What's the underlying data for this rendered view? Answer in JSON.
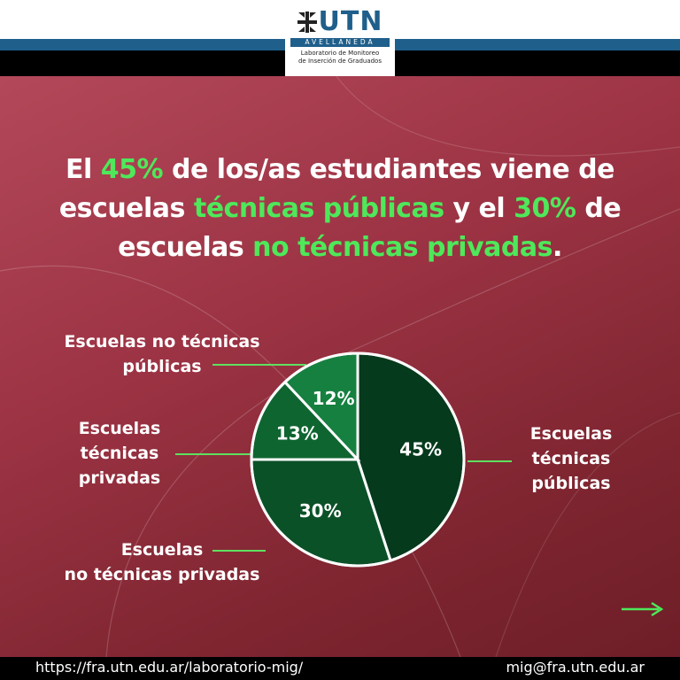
{
  "header": {
    "logo_text": "UTN",
    "city": "AVELLANEDA",
    "subtitle_line1": "Laboratorio de Monitoreo",
    "subtitle_line2": "de Inserción de Graduados"
  },
  "headline": {
    "p1": "El ",
    "h1": "45%",
    "p2": " de los/as estudiantes viene de escuelas ",
    "h2": "técnicas públicas",
    "p3": " y el ",
    "h3": "30%",
    "p4": " de escuelas ",
    "h4": "no técnicas privadas",
    "p5": "."
  },
  "chart_data": {
    "type": "pie",
    "categories": [
      "Escuelas técnicas públicas",
      "Escuelas no técnicas privadas",
      "Escuelas técnicas privadas",
      "Escuelas no técnicas públicas"
    ],
    "values": [
      45,
      30,
      13,
      12
    ],
    "data_labels": [
      "45%",
      "30%",
      "13%",
      "12%"
    ],
    "colors": [
      "#053a1c",
      "#0b5128",
      "#0f6530",
      "#168040"
    ]
  },
  "labels": {
    "no_tec_publicas_1": "Escuelas no técnicas",
    "no_tec_publicas_2": "públicas",
    "tec_privadas_1": "Escuelas",
    "tec_privadas_2": "técnicas",
    "tec_privadas_3": "privadas",
    "no_tec_privadas_1": "Escuelas",
    "no_tec_privadas_2": "no técnicas privadas",
    "tec_publicas_1": "Escuelas",
    "tec_publicas_2": "técnicas",
    "tec_publicas_3": "públicas"
  },
  "colors": {
    "accent_green": "#4ee85a",
    "line_green": "#5ee060",
    "brand_blue": "#1f5f8b"
  },
  "next_icon": "arrow-right-icon",
  "footer": {
    "url": "https://fra.utn.edu.ar/laboratorio-mig/",
    "email": "mig@fra.utn.edu.ar"
  }
}
